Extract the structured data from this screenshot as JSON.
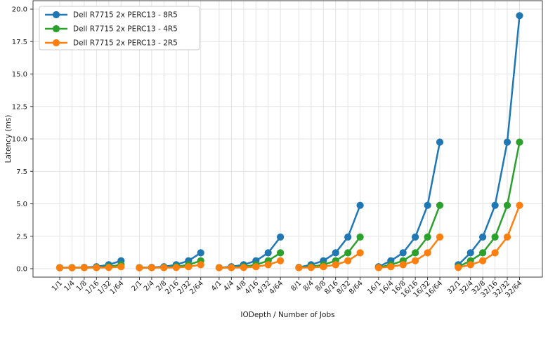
{
  "chart_data": {
    "type": "line",
    "title": "",
    "xlabel": "IODepth / Number of Jobs",
    "ylabel": "Latency (ms)",
    "legend_position": "upper left",
    "grid": true,
    "group_size": 6,
    "ylim": [
      -0.65,
      20.65
    ],
    "y_ticks": [
      "0.0",
      "2.5",
      "5.0",
      "7.5",
      "10.0",
      "12.5",
      "15.0",
      "17.5",
      "20.0"
    ],
    "y_tick_values": [
      0,
      2.5,
      5,
      7.5,
      10,
      12.5,
      15,
      17.5,
      20
    ],
    "categories": [
      "1/1",
      "1/4",
      "1/8",
      "1/16",
      "1/32",
      "1/64",
      "2/1",
      "2/4",
      "2/8",
      "2/16",
      "2/32",
      "2/64",
      "4/1",
      "4/4",
      "4/8",
      "4/16",
      "4/32",
      "4/64",
      "8/1",
      "8/4",
      "8/8",
      "8/16",
      "8/32",
      "8/64",
      "16/1",
      "16/4",
      "16/8",
      "16/16",
      "16/32",
      "16/64",
      "32/1",
      "32/4",
      "32/8",
      "32/16",
      "32/32",
      "32/64"
    ],
    "series": [
      {
        "name": "Dell R7715 2x PERC13 - 8R5",
        "color": "#1f77b4",
        "values": [
          0.08,
          0.08,
          0.1,
          0.15,
          0.3,
          0.61,
          0.08,
          0.1,
          0.15,
          0.3,
          0.61,
          1.22,
          0.08,
          0.15,
          0.3,
          0.61,
          1.22,
          2.44,
          0.1,
          0.3,
          0.61,
          1.22,
          2.44,
          4.88,
          0.15,
          0.61,
          1.22,
          2.44,
          4.88,
          9.75,
          0.3,
          1.22,
          2.44,
          4.88,
          9.75,
          19.5
        ]
      },
      {
        "name": "Dell R7715 2x PERC13 - 4R5",
        "color": "#2ca02c",
        "values": [
          0.07,
          0.08,
          0.08,
          0.09,
          0.15,
          0.3,
          0.08,
          0.08,
          0.09,
          0.15,
          0.3,
          0.61,
          0.08,
          0.09,
          0.15,
          0.3,
          0.61,
          1.22,
          0.08,
          0.15,
          0.3,
          0.61,
          1.22,
          2.44,
          0.09,
          0.3,
          0.61,
          1.22,
          2.44,
          4.88,
          0.15,
          0.61,
          1.22,
          2.44,
          4.88,
          9.75
        ]
      },
      {
        "name": "Dell R7715 2x PERC13 - 2R5",
        "color": "#ff7f0e",
        "values": [
          0.07,
          0.07,
          0.08,
          0.08,
          0.09,
          0.15,
          0.07,
          0.08,
          0.08,
          0.09,
          0.15,
          0.3,
          0.08,
          0.08,
          0.09,
          0.15,
          0.3,
          0.61,
          0.08,
          0.09,
          0.15,
          0.3,
          0.61,
          1.22,
          0.08,
          0.15,
          0.3,
          0.61,
          1.22,
          2.44,
          0.09,
          0.3,
          0.61,
          1.22,
          2.44,
          4.88
        ]
      }
    ],
    "style": {
      "grid_color": "#e3e3e3",
      "spine_color": "#3c3c3c",
      "background": "#ffffff",
      "legend_border": "#cccccc"
    }
  }
}
